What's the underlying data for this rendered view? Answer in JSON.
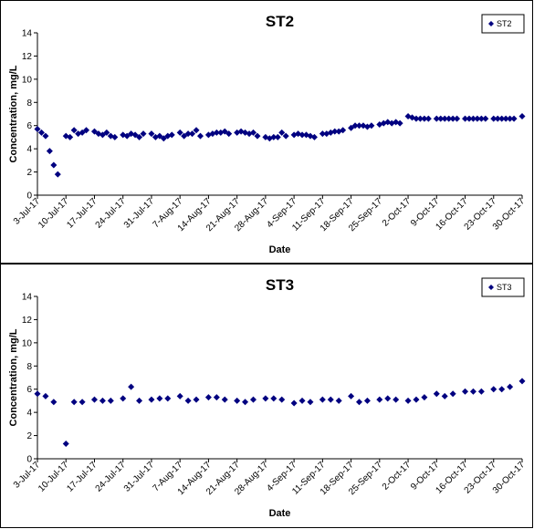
{
  "chart_data": [
    {
      "type": "scatter",
      "title": "ST2",
      "xlabel": "Date",
      "ylabel": "Concentration, mg/L",
      "ylim": [
        0,
        14
      ],
      "yticks": [
        0,
        2,
        4,
        6,
        8,
        10,
        12,
        14
      ],
      "xticks": [
        "3-Jul-17",
        "10-Jul-17",
        "17-Jul-17",
        "24-Jul-17",
        "31-Jul-17",
        "7-Aug-17",
        "14-Aug-17",
        "21-Aug-17",
        "28-Aug-17",
        "4-Sep-17",
        "11-Sep-17",
        "18-Sep-17",
        "25-Sep-17",
        "2-Oct-17",
        "9-Oct-17",
        "16-Oct-17",
        "23-Oct-17",
        "30-Oct-17"
      ],
      "xlim": [
        "2017-07-03",
        "2017-10-30"
      ],
      "grid": false,
      "legend_position": "top-right",
      "color": "#000080",
      "series": [
        {
          "name": "ST2",
          "x": [
            "2017-07-03",
            "2017-07-04",
            "2017-07-05",
            "2017-07-06",
            "2017-07-07",
            "2017-07-08",
            "2017-07-10",
            "2017-07-11",
            "2017-07-12",
            "2017-07-13",
            "2017-07-14",
            "2017-07-15",
            "2017-07-17",
            "2017-07-18",
            "2017-07-19",
            "2017-07-20",
            "2017-07-21",
            "2017-07-22",
            "2017-07-24",
            "2017-07-25",
            "2017-07-26",
            "2017-07-27",
            "2017-07-28",
            "2017-07-29",
            "2017-07-31",
            "2017-08-01",
            "2017-08-02",
            "2017-08-03",
            "2017-08-04",
            "2017-08-05",
            "2017-08-07",
            "2017-08-08",
            "2017-08-09",
            "2017-08-10",
            "2017-08-11",
            "2017-08-12",
            "2017-08-14",
            "2017-08-15",
            "2017-08-16",
            "2017-08-17",
            "2017-08-18",
            "2017-08-19",
            "2017-08-21",
            "2017-08-22",
            "2017-08-23",
            "2017-08-24",
            "2017-08-25",
            "2017-08-26",
            "2017-08-28",
            "2017-08-29",
            "2017-08-30",
            "2017-08-31",
            "2017-09-01",
            "2017-09-02",
            "2017-09-04",
            "2017-09-05",
            "2017-09-06",
            "2017-09-07",
            "2017-09-08",
            "2017-09-09",
            "2017-09-11",
            "2017-09-12",
            "2017-09-13",
            "2017-09-14",
            "2017-09-15",
            "2017-09-16",
            "2017-09-18",
            "2017-09-19",
            "2017-09-20",
            "2017-09-21",
            "2017-09-22",
            "2017-09-23",
            "2017-09-25",
            "2017-09-26",
            "2017-09-27",
            "2017-09-28",
            "2017-09-29",
            "2017-09-30",
            "2017-10-02",
            "2017-10-03",
            "2017-10-04",
            "2017-10-05",
            "2017-10-06",
            "2017-10-07",
            "2017-10-09",
            "2017-10-10",
            "2017-10-11",
            "2017-10-12",
            "2017-10-13",
            "2017-10-14",
            "2017-10-16",
            "2017-10-17",
            "2017-10-18",
            "2017-10-19",
            "2017-10-20",
            "2017-10-21",
            "2017-10-23",
            "2017-10-24",
            "2017-10-25",
            "2017-10-26",
            "2017-10-27",
            "2017-10-28",
            "2017-10-30"
          ],
          "y": [
            5.7,
            5.4,
            5.1,
            3.8,
            2.6,
            1.8,
            5.1,
            5.0,
            5.6,
            5.3,
            5.4,
            5.6,
            5.5,
            5.3,
            5.2,
            5.4,
            5.1,
            5.0,
            5.2,
            5.1,
            5.3,
            5.2,
            5.0,
            5.3,
            5.3,
            5.0,
            5.1,
            4.9,
            5.1,
            5.2,
            5.4,
            5.1,
            5.3,
            5.3,
            5.6,
            5.1,
            5.2,
            5.3,
            5.4,
            5.4,
            5.5,
            5.3,
            5.4,
            5.5,
            5.4,
            5.3,
            5.4,
            5.1,
            5.0,
            4.9,
            5.0,
            5.0,
            5.4,
            5.1,
            5.2,
            5.3,
            5.2,
            5.2,
            5.1,
            5.0,
            5.3,
            5.3,
            5.4,
            5.5,
            5.5,
            5.6,
            5.8,
            6.0,
            6.0,
            6.0,
            5.9,
            6.0,
            6.1,
            6.2,
            6.3,
            6.2,
            6.3,
            6.2,
            6.8,
            6.7,
            6.6,
            6.6,
            6.6,
            6.6,
            6.6,
            6.6,
            6.6,
            6.6,
            6.6,
            6.6,
            6.6,
            6.6,
            6.6,
            6.6,
            6.6,
            6.6,
            6.6,
            6.6,
            6.6,
            6.6,
            6.6,
            6.6,
            6.8
          ]
        }
      ]
    },
    {
      "type": "scatter",
      "title": "ST3",
      "xlabel": "Date",
      "ylabel": "Concentration, mg/L",
      "ylim": [
        0,
        14
      ],
      "yticks": [
        0,
        2,
        4,
        6,
        8,
        10,
        12,
        14
      ],
      "xticks": [
        "3-Jul-17",
        "10-Jul-17",
        "17-Jul-17",
        "24-Jul-17",
        "31-Jul-17",
        "7-Aug-17",
        "14-Aug-17",
        "21-Aug-17",
        "28-Aug-17",
        "4-Sep-17",
        "11-Sep-17",
        "18-Sep-17",
        "25-Sep-17",
        "2-Oct-17",
        "9-Oct-17",
        "16-Oct-17",
        "23-Oct-17",
        "30-Oct-17"
      ],
      "xlim": [
        "2017-07-03",
        "2017-10-30"
      ],
      "grid": false,
      "legend_position": "top-right",
      "color": "#000080",
      "series": [
        {
          "name": "ST3",
          "x": [
            "2017-07-03",
            "2017-07-05",
            "2017-07-07",
            "2017-07-10",
            "2017-07-12",
            "2017-07-14",
            "2017-07-17",
            "2017-07-19",
            "2017-07-21",
            "2017-07-24",
            "2017-07-26",
            "2017-07-28",
            "2017-07-31",
            "2017-08-02",
            "2017-08-04",
            "2017-08-07",
            "2017-08-09",
            "2017-08-11",
            "2017-08-14",
            "2017-08-16",
            "2017-08-18",
            "2017-08-21",
            "2017-08-23",
            "2017-08-25",
            "2017-08-28",
            "2017-08-30",
            "2017-09-01",
            "2017-09-04",
            "2017-09-06",
            "2017-09-08",
            "2017-09-11",
            "2017-09-13",
            "2017-09-15",
            "2017-09-18",
            "2017-09-20",
            "2017-09-22",
            "2017-09-25",
            "2017-09-27",
            "2017-09-29",
            "2017-10-02",
            "2017-10-04",
            "2017-10-06",
            "2017-10-09",
            "2017-10-11",
            "2017-10-13",
            "2017-10-16",
            "2017-10-18",
            "2017-10-20",
            "2017-10-23",
            "2017-10-25",
            "2017-10-27",
            "2017-10-30"
          ],
          "y": [
            5.6,
            5.4,
            4.9,
            1.3,
            4.9,
            4.9,
            5.1,
            5.0,
            5.0,
            5.2,
            6.2,
            5.0,
            5.1,
            5.2,
            5.2,
            5.4,
            5.0,
            5.1,
            5.3,
            5.3,
            5.1,
            5.0,
            4.9,
            5.1,
            5.2,
            5.2,
            5.1,
            4.8,
            5.0,
            4.9,
            5.1,
            5.1,
            5.0,
            5.4,
            4.9,
            5.0,
            5.1,
            5.2,
            5.1,
            5.0,
            5.1,
            5.3,
            5.6,
            5.4,
            5.6,
            5.8,
            5.8,
            5.8,
            6.0,
            6.0,
            6.2,
            6.7
          ]
        }
      ]
    }
  ]
}
